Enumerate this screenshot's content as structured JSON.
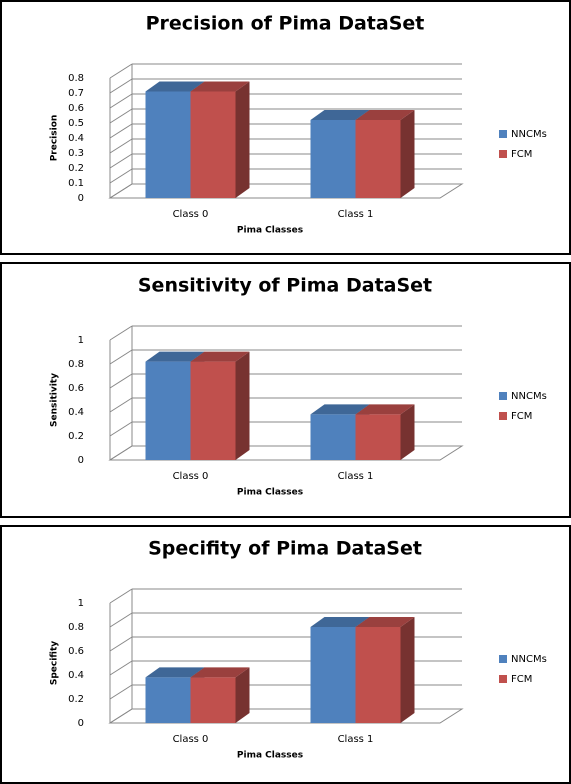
{
  "chart_data": [
    {
      "type": "bar3d",
      "title": "Precision of Pima DataSet",
      "x_label": "Pima Classes",
      "y_label": "Precision",
      "categories": [
        "Class 0",
        "Class 1"
      ],
      "series": [
        {
          "name": "NNCMs",
          "color": "#4f81bd",
          "values": [
            0.71,
            0.52
          ]
        },
        {
          "name": "FCM",
          "color": "#c0504d",
          "values": [
            0.71,
            0.52
          ]
        }
      ],
      "ylim": [
        0,
        0.8
      ],
      "yticks": [
        0,
        0.1,
        0.2,
        0.3,
        0.4,
        0.5,
        0.6,
        0.7,
        0.8
      ],
      "grid": true,
      "legend": "right"
    },
    {
      "type": "bar3d",
      "title": "Sensitivity of Pima DataSet",
      "x_label": "Pima Classes",
      "y_label": "Sensitivity",
      "categories": [
        "Class 0",
        "Class 1"
      ],
      "series": [
        {
          "name": "NNCMs",
          "color": "#4f81bd",
          "values": [
            0.82,
            0.38
          ]
        },
        {
          "name": "FCM",
          "color": "#c0504d",
          "values": [
            0.82,
            0.38
          ]
        }
      ],
      "ylim": [
        0,
        1
      ],
      "yticks": [
        0,
        0.2,
        0.4,
        0.6,
        0.8,
        1
      ],
      "grid": true,
      "legend": "right"
    },
    {
      "type": "bar3d",
      "title": "Specifity of Pima DataSet",
      "x_label": "Pima Classes",
      "y_label": "Specifity",
      "categories": [
        "Class 0",
        "Class 1"
      ],
      "series": [
        {
          "name": "NNCMs",
          "color": "#4f81bd",
          "values": [
            0.38,
            0.8
          ]
        },
        {
          "name": "FCM",
          "color": "#c0504d",
          "values": [
            0.38,
            0.8
          ]
        }
      ],
      "ylim": [
        0,
        1
      ],
      "yticks": [
        0,
        0.2,
        0.4,
        0.6,
        0.8,
        1
      ],
      "grid": true,
      "legend": "right"
    }
  ]
}
